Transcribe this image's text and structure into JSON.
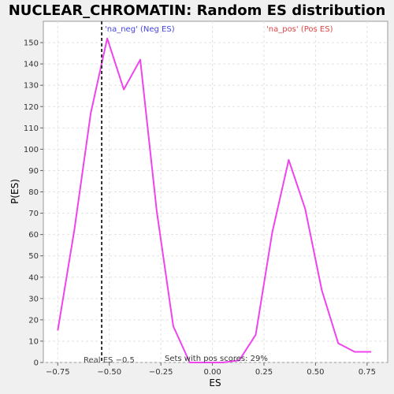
{
  "chart_data": {
    "type": "line",
    "title": "NUCLEAR_CHROMATIN: Random ES distribution",
    "xlabel": "ES",
    "ylabel": "P(ES)",
    "xlim": [
      -0.82,
      0.85
    ],
    "ylim": [
      0,
      160
    ],
    "xticks": [
      -0.75,
      -0.5,
      -0.25,
      0.0,
      0.25,
      0.5,
      0.75
    ],
    "xtick_labels": [
      "−0.75",
      "−0.50",
      "−0.25",
      "0.00",
      "0.25",
      "0.50",
      "0.75"
    ],
    "yticks": [
      0,
      10,
      20,
      30,
      40,
      50,
      60,
      70,
      80,
      90,
      100,
      110,
      120,
      130,
      140,
      150
    ],
    "ytick_labels": [
      "0",
      "10",
      "20",
      "30",
      "40",
      "50",
      "60",
      "70",
      "80",
      "90",
      "100",
      "110",
      "120",
      "130",
      "140",
      "150"
    ],
    "grid": true,
    "series": [
      {
        "color": "#ee44ee",
        "x": [
          -0.75,
          -0.67,
          -0.59,
          -0.51,
          -0.43,
          -0.35,
          -0.27,
          -0.19,
          -0.11,
          -0.03,
          0.05,
          0.13,
          0.21,
          0.29,
          0.37,
          0.45,
          0.53,
          0.61,
          0.69,
          0.77
        ],
        "y": [
          15,
          62,
          117,
          152,
          128,
          142,
          71,
          17,
          0,
          0,
          0,
          1,
          13,
          61,
          95,
          72,
          34,
          9,
          5,
          5
        ]
      }
    ],
    "real_es": -0.537,
    "annotations": {
      "neg_label": "'na_neg' (Neg ES)",
      "pos_label": "'na_pos' (Pos ES)",
      "real_es_label": "Real ES −0.5",
      "pos_scores_label": "Sets with pos scores: 29%"
    },
    "colors": {
      "line": "#ee44ee",
      "neg_label": "#4444dd",
      "pos_label": "#dd4444",
      "real_es_line": "#333333",
      "plot_background": "#ffffff",
      "page_background": "#f0f0f0"
    }
  }
}
